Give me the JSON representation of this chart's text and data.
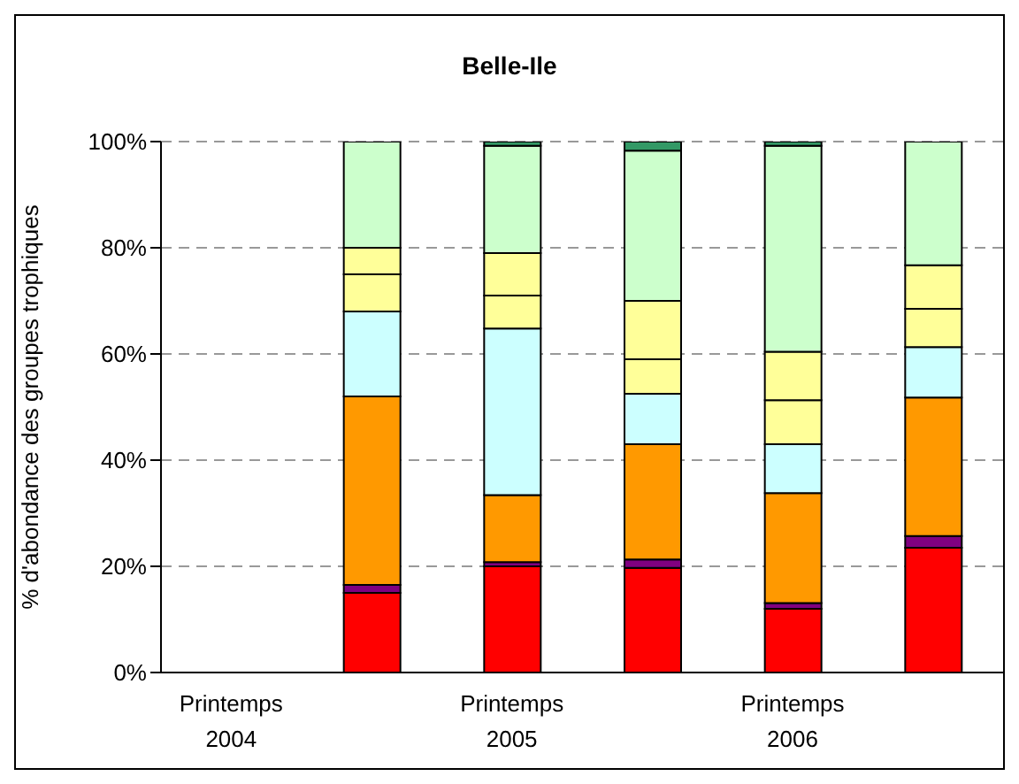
{
  "chart_data": {
    "type": "bar",
    "title": "Belle-Ile",
    "ylabel": "% d'abondance des groupes trophiques",
    "categories": [
      "Printemps 2004",
      null,
      "Printemps 2005",
      null,
      "Printemps 2006",
      null
    ],
    "stacked": true,
    "ylim": [
      0,
      100
    ],
    "yticks": [
      {
        "value": 0,
        "label": "0%"
      },
      {
        "value": 20,
        "label": "20%"
      },
      {
        "value": 40,
        "label": "40%"
      },
      {
        "value": 60,
        "label": "60%"
      },
      {
        "value": 80,
        "label": "80%"
      },
      {
        "value": 100,
        "label": "100%"
      }
    ],
    "grid": "y",
    "legend": false,
    "series": [
      {
        "color": "#ff0000",
        "values": [
          null,
          15,
          20,
          19.7,
          12,
          23.5
        ]
      },
      {
        "color": "#800080",
        "values": [
          null,
          1.5,
          0.8,
          1.6,
          1.1,
          2.2
        ]
      },
      {
        "color": "#ff9900",
        "values": [
          null,
          35.5,
          12.6,
          21.7,
          20.7,
          26.1
        ]
      },
      {
        "color": "#ccffff",
        "values": [
          null,
          16,
          31.4,
          9.5,
          9.2,
          9.5
        ]
      },
      {
        "color": "#ffff99",
        "values": [
          null,
          7,
          6.2,
          6.5,
          8.3,
          7.2
        ]
      },
      {
        "color": "#ffff99",
        "values": [
          null,
          5,
          8,
          11,
          9.1,
          8.2
        ]
      },
      {
        "color": "#ccffcc",
        "values": [
          null,
          20,
          20.2,
          28.3,
          38.8,
          23.3
        ]
      },
      {
        "color": "#339966",
        "values": [
          null,
          0,
          0.8,
          1.7,
          0.8,
          0
        ]
      }
    ]
  }
}
